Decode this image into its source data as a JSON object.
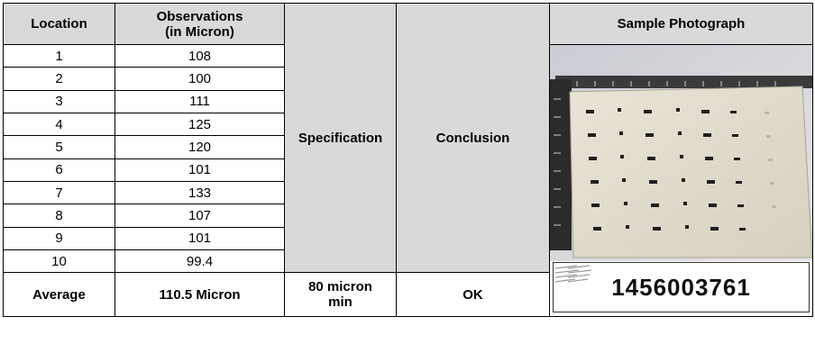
{
  "headers": {
    "location": "Location",
    "observations_line1": "Observations",
    "observations_line2": "(in Micron)",
    "specification": "Specification",
    "conclusion": "Conclusion",
    "sample_photograph": "Sample Photograph"
  },
  "rows": [
    {
      "location": "1",
      "value": "108"
    },
    {
      "location": "2",
      "value": "100"
    },
    {
      "location": "3",
      "value": "111"
    },
    {
      "location": "4",
      "value": "125"
    },
    {
      "location": "5",
      "value": "120"
    },
    {
      "location": "6",
      "value": "101"
    },
    {
      "location": "7",
      "value": "133"
    },
    {
      "location": "8",
      "value": "107"
    },
    {
      "location": "9",
      "value": "101"
    },
    {
      "location": "10",
      "value": "99.4"
    }
  ],
  "summary": {
    "label": "Average",
    "average": "110.5 Micron",
    "spec_line1": "80 micron",
    "spec_line2": "min",
    "conclusion": "OK"
  },
  "photo": {
    "sample_id": "1456003761"
  },
  "colors": {
    "header_bg": "#d9d9d9",
    "border": "#000000"
  }
}
